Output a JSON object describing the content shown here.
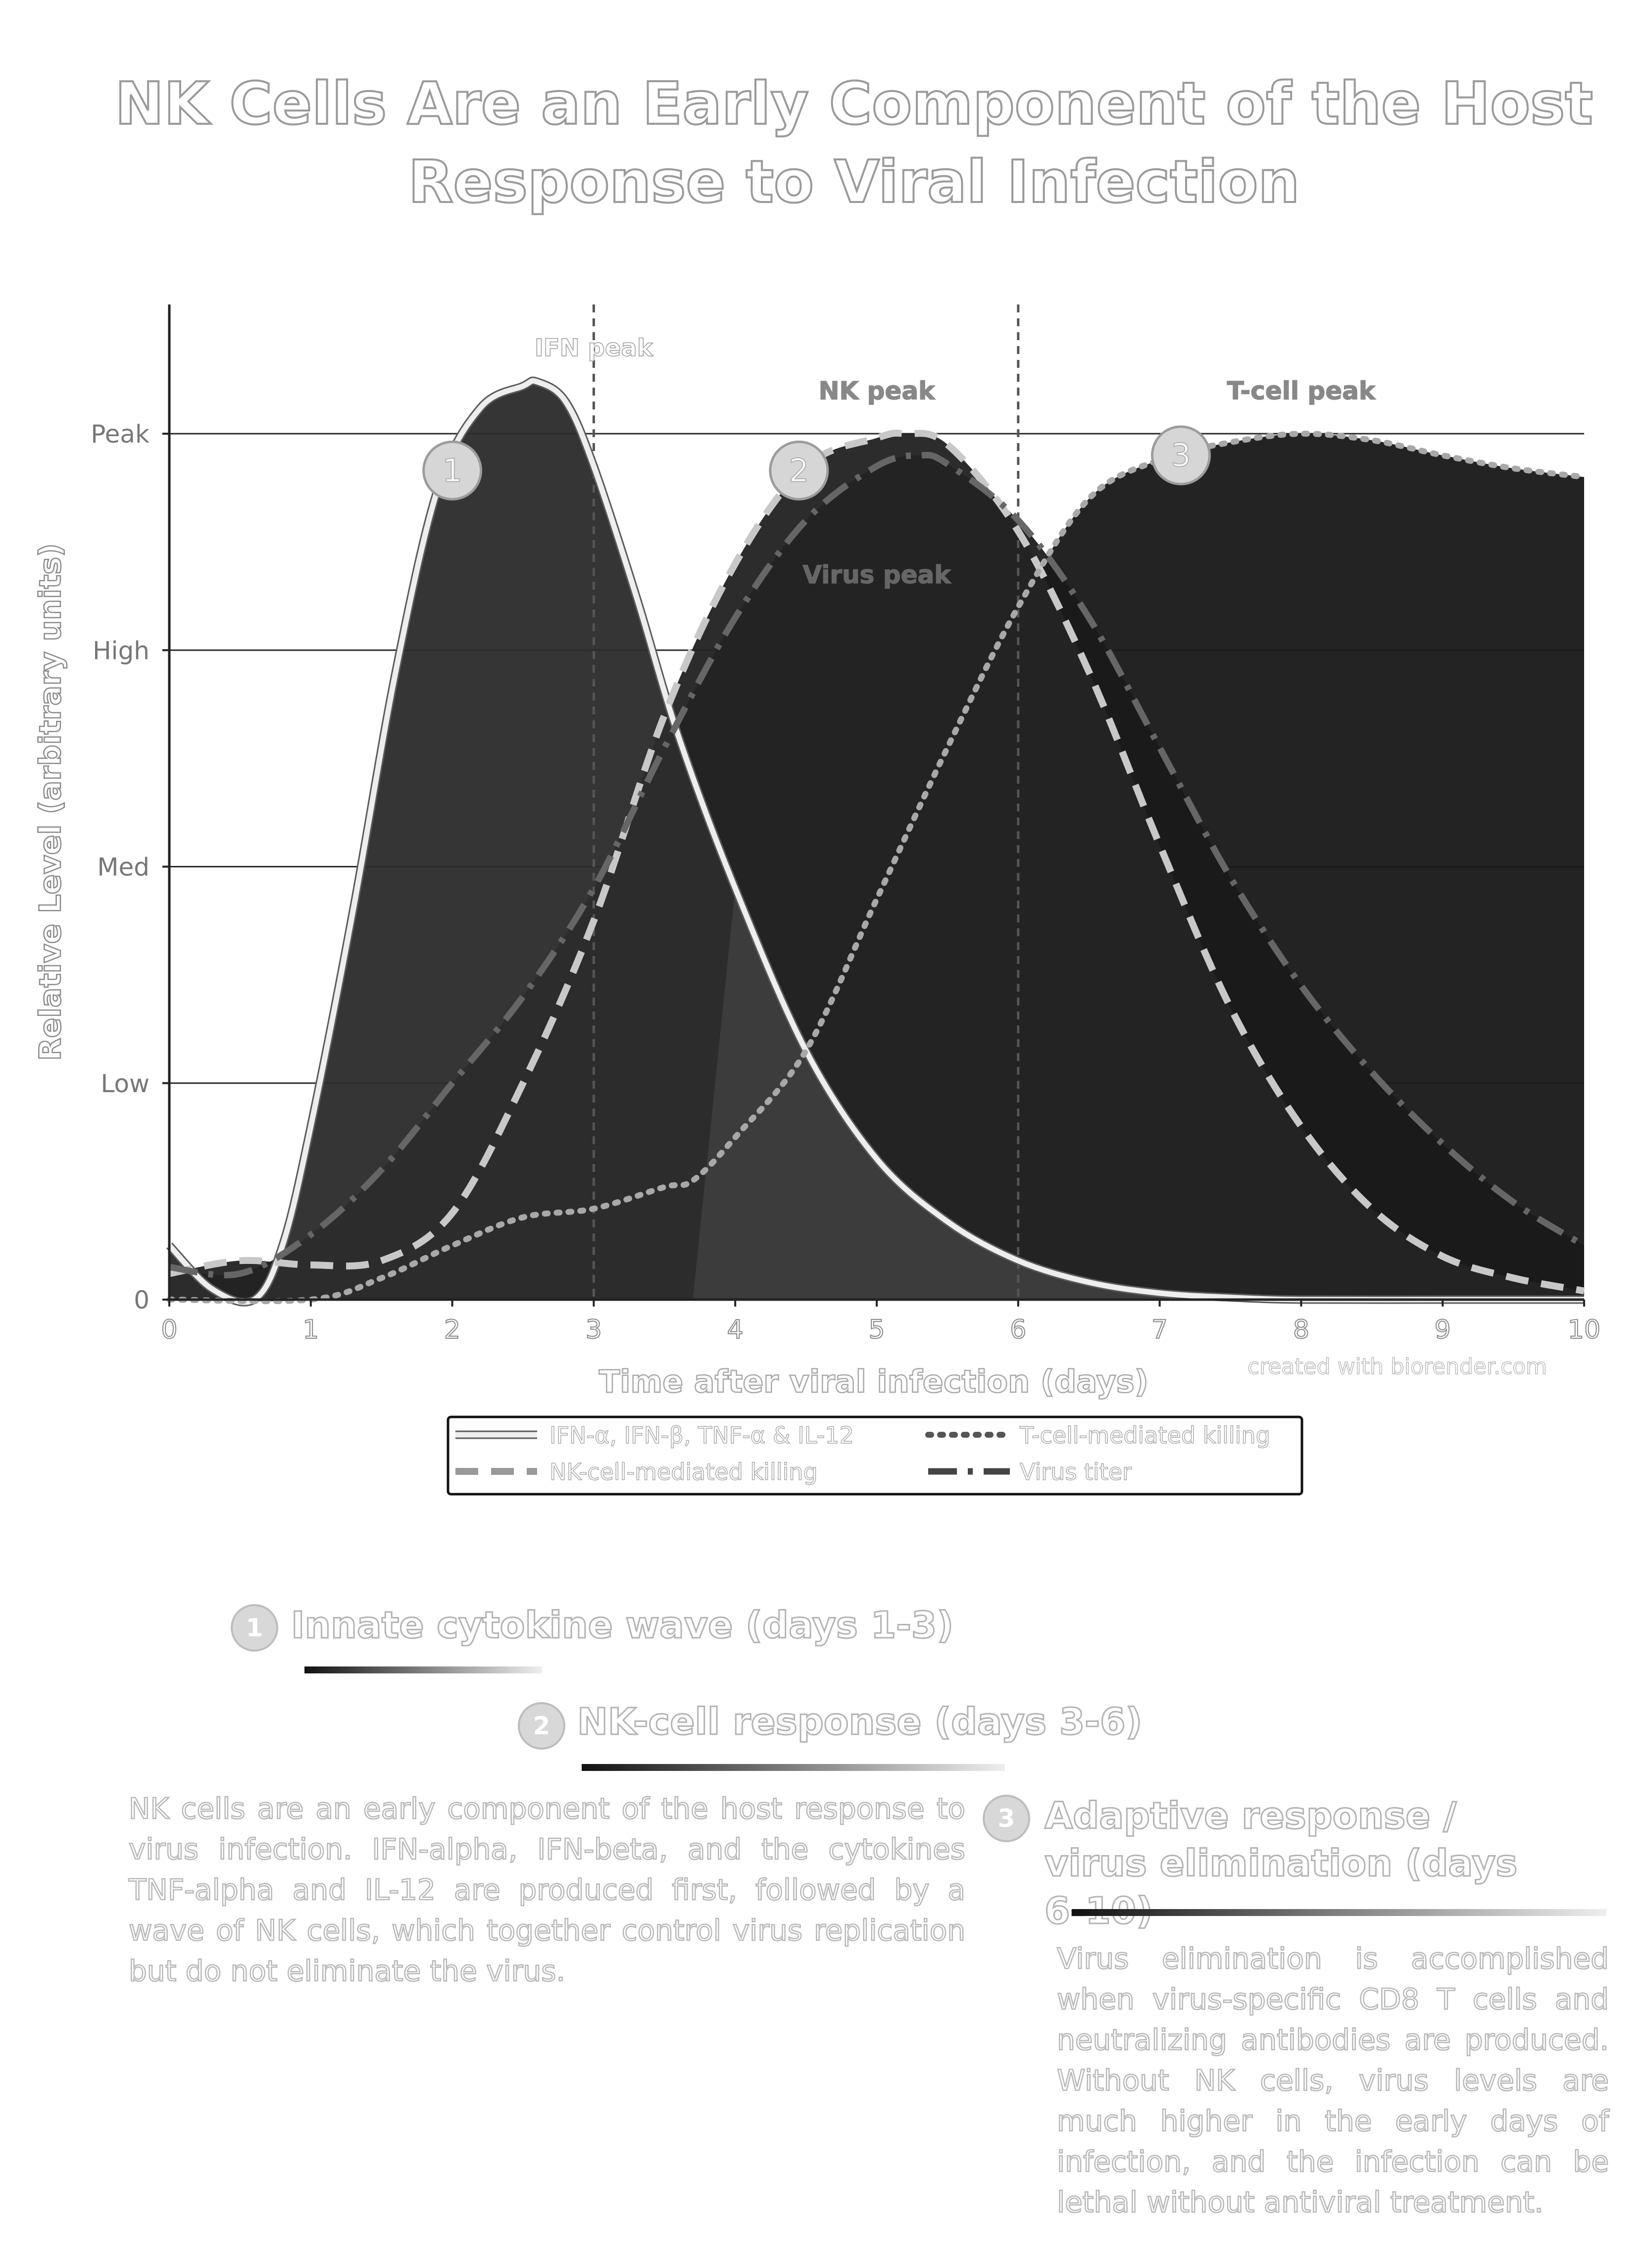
{
  "title_line1": "NK Cells Are an Early Component of the Host",
  "title_line2": "Response to Viral Infection",
  "chart_data": {
    "type": "area",
    "title": "NK Cells Are an Early Component of the Host Response to Viral Infection",
    "xlabel": "Time after viral infection (days)",
    "ylabel": "Relative Level (arbitrary units)",
    "xlim": [
      0,
      10
    ],
    "ylim": [
      0,
      4
    ],
    "x_ticks": [
      "0",
      "1",
      "2",
      "3",
      "4",
      "5",
      "6",
      "7",
      "8",
      "9",
      "10"
    ],
    "y_ticks": [
      {
        "value": 0,
        "label": "0"
      },
      {
        "value": 1,
        "label": "Low"
      },
      {
        "value": 2,
        "label": "Med"
      },
      {
        "value": 3,
        "label": "High"
      },
      {
        "value": 4,
        "label": "Peak"
      }
    ],
    "grid": true,
    "legend_position": "bottom-center",
    "series": [
      {
        "name": "IFN-α, IFN-β, TNF-α & IL-12",
        "style": "solid",
        "color": "#eeeeee",
        "x": [
          0,
          0.3,
          0.6,
          0.8,
          1.0,
          1.3,
          1.6,
          1.9,
          2.2,
          2.5,
          2.6,
          2.8,
          3.0,
          3.3,
          3.6,
          4.0,
          4.5,
          5.0,
          5.5,
          6.0,
          6.5,
          7.0,
          7.5,
          8.0,
          9.0,
          10.0
        ],
        "y": [
          0.25,
          0.05,
          0.0,
          0.25,
          0.8,
          1.8,
          2.9,
          3.75,
          4.12,
          4.22,
          4.24,
          4.15,
          3.85,
          3.25,
          2.6,
          1.9,
          1.15,
          0.65,
          0.36,
          0.18,
          0.08,
          0.03,
          0.01,
          0.0,
          0.0,
          0.0
        ]
      },
      {
        "name": "NK-cell-mediated killing",
        "style": "dashed",
        "color": "#c8c8c8",
        "x": [
          0,
          0.5,
          1.0,
          1.5,
          2.0,
          2.5,
          3.0,
          3.5,
          4.0,
          4.5,
          5.0,
          5.2,
          5.5,
          6.0,
          6.5,
          7.0,
          7.5,
          8.0,
          8.5,
          9.0,
          9.5,
          10.0
        ],
        "y": [
          0.12,
          0.18,
          0.16,
          0.18,
          0.4,
          1.0,
          1.75,
          2.7,
          3.4,
          3.85,
          3.98,
          4.0,
          3.95,
          3.55,
          2.9,
          2.1,
          1.35,
          0.8,
          0.42,
          0.2,
          0.1,
          0.04
        ]
      },
      {
        "name": "T-cell-mediated killing",
        "style": "dotted",
        "color": "#a8a8a8",
        "x": [
          0,
          1.0,
          1.5,
          2.0,
          2.5,
          3.0,
          3.5,
          3.7,
          4.0,
          4.5,
          5.0,
          5.5,
          6.0,
          6.5,
          7.0,
          7.5,
          8.0,
          8.5,
          9.0,
          9.5,
          10.0
        ],
        "y": [
          0.0,
          0.0,
          0.1,
          0.25,
          0.38,
          0.42,
          0.52,
          0.55,
          0.75,
          1.15,
          1.85,
          2.55,
          3.2,
          3.7,
          3.88,
          3.96,
          4.0,
          3.97,
          3.9,
          3.84,
          3.8
        ]
      },
      {
        "name": "Virus titer",
        "style": "dash-dot",
        "color": "#666666",
        "x": [
          0,
          0.5,
          1.0,
          1.5,
          2.0,
          2.5,
          3.0,
          3.5,
          4.0,
          4.5,
          5.0,
          5.3,
          5.5,
          6.0,
          6.5,
          7.0,
          7.5,
          8.0,
          8.5,
          9.0,
          9.5,
          10.0
        ],
        "y": [
          0.15,
          0.12,
          0.3,
          0.6,
          1.0,
          1.4,
          1.9,
          2.55,
          3.15,
          3.6,
          3.85,
          3.9,
          3.86,
          3.6,
          3.15,
          2.55,
          1.95,
          1.45,
          1.05,
          0.72,
          0.45,
          0.25
        ]
      }
    ],
    "annotations": [
      {
        "text": "IFN peak",
        "x": 3,
        "y": 4.4,
        "vline": true
      },
      {
        "text": "NK peak",
        "x": 5,
        "y": 4.2
      },
      {
        "text": "T-cell peak",
        "x": 8,
        "y": 4.2
      },
      {
        "text": "Virus peak",
        "x": 5,
        "y": 3.35
      },
      {
        "text": "",
        "x": 6,
        "vline": true
      }
    ],
    "markers": [
      {
        "label": "1",
        "x": 2,
        "y": 3.83
      },
      {
        "label": "2",
        "x": 4.45,
        "y": 3.83
      },
      {
        "label": "3",
        "x": 7.15,
        "y": 3.9
      }
    ],
    "credit": "created with biorender.com"
  },
  "sections": [
    {
      "num": "1",
      "heading": "Innate cytokine wave (days 1-3)"
    },
    {
      "num": "2",
      "heading": "NK-cell response (days 3-6)"
    },
    {
      "num": "3",
      "heading": "Adaptive response / virus elimination (days 6-10)"
    }
  ],
  "paragraph_nk": "NK cells are an early component of the host response to virus infection. IFN-alpha, IFN-beta, and the cytokines TNF-alpha and IL-12 are produced first, followed by a wave of NK cells, which together control virus replication but do not eliminate the virus.",
  "paragraph_adaptive": "Virus elimination is accomplished when virus-specific CD8 T cells and neutralizing antibodies are produced. Without NK cells, virus levels are much higher in the early days of infection, and the infection can be lethal without antiviral treatment."
}
